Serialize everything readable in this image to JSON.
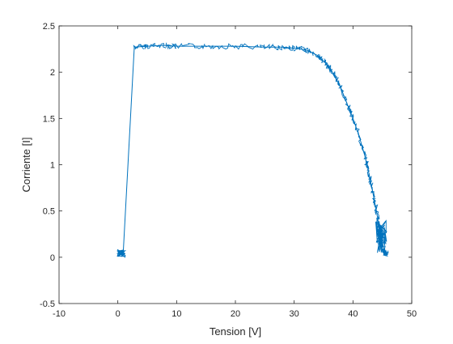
{
  "chart_data": {
    "type": "line",
    "xlabel": "Tension [V]",
    "ylabel": "Corriente [I]",
    "xlim": [
      -10,
      50
    ],
    "ylim": [
      -0.5,
      2.5
    ],
    "xticks": [
      -10,
      0,
      10,
      20,
      30,
      40,
      50
    ],
    "yticks": [
      -0.5,
      0,
      0.5,
      1,
      1.5,
      2,
      2.5
    ],
    "xtick_labels": [
      "-10",
      "0",
      "10",
      "20",
      "30",
      "40",
      "50"
    ],
    "ytick_labels": [
      "-0.5",
      "0",
      "0.5",
      "1",
      "1.5",
      "2",
      "2.5"
    ],
    "grid": false,
    "line_color": "#0072BD",
    "series": [
      {
        "x": [
          0.5,
          0.8,
          0.3,
          1.0,
          0.6,
          1.2,
          0.9,
          2.8,
          5,
          8,
          10,
          15,
          20,
          25,
          28,
          30,
          32,
          34,
          35,
          36,
          37,
          38,
          39,
          40,
          41,
          42,
          42.5,
          43,
          43.5,
          44,
          44.3,
          44.6,
          44.8,
          45,
          45.2,
          45.5,
          46
        ],
        "y": [
          0.03,
          0.06,
          0.02,
          0.05,
          0.01,
          0.04,
          0.03,
          2.27,
          2.28,
          2.29,
          2.28,
          2.28,
          2.28,
          2.27,
          2.27,
          2.26,
          2.24,
          2.18,
          2.12,
          2.05,
          1.95,
          1.82,
          1.66,
          1.5,
          1.32,
          1.1,
          0.97,
          0.82,
          0.66,
          0.5,
          0.38,
          0.25,
          0.15,
          0.08,
          0.05,
          0.04,
          0.05
        ]
      }
    ]
  }
}
